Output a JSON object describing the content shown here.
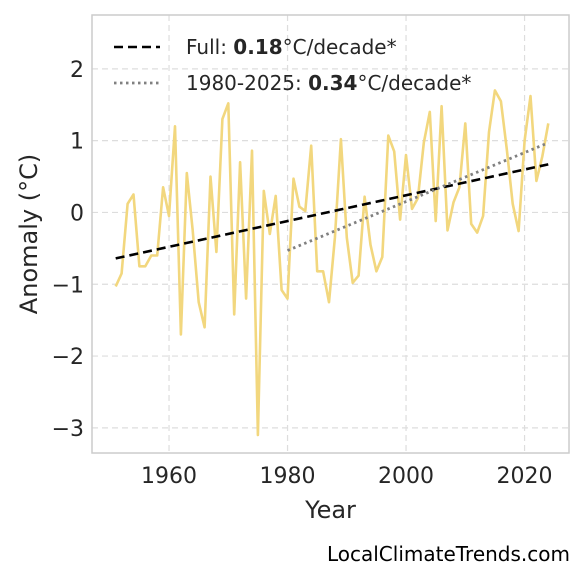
{
  "chart_data": {
    "type": "line",
    "title": "",
    "xlabel": "Year",
    "ylabel": "Anomaly (°C)",
    "xlim": [
      1947,
      2027.5
    ],
    "ylim": [
      -3.35,
      2.75
    ],
    "xticks": [
      1960,
      1980,
      2000,
      2020
    ],
    "yticks": [
      2,
      1,
      0,
      -1,
      -2,
      -3
    ],
    "ytick_labels": [
      "2",
      "1",
      "0",
      "−1",
      "−2",
      "−3"
    ],
    "grid": true,
    "legend_position": "top-left",
    "colors": {
      "series": "#f2d77e",
      "trend_full": "#000000",
      "trend_recent": "#808080",
      "grid": "#dddddd",
      "frame": "#cccccc"
    },
    "series": [
      {
        "name": "",
        "x": [
          1951,
          1952,
          1953,
          1954,
          1955,
          1956,
          1957,
          1958,
          1959,
          1960,
          1961,
          1962,
          1963,
          1964,
          1965,
          1966,
          1967,
          1968,
          1969,
          1970,
          1971,
          1972,
          1973,
          1974,
          1975,
          1976,
          1977,
          1978,
          1979,
          1980,
          1981,
          1982,
          1983,
          1984,
          1985,
          1986,
          1987,
          1988,
          1989,
          1990,
          1991,
          1992,
          1993,
          1994,
          1995,
          1996,
          1997,
          1998,
          1999,
          2000,
          2001,
          2002,
          2003,
          2004,
          2005,
          2006,
          2007,
          2008,
          2009,
          2010,
          2011,
          2012,
          2013,
          2014,
          2015,
          2016,
          2017,
          2018,
          2019,
          2020,
          2021,
          2022,
          2023,
          2024
        ],
        "y": [
          -1.03,
          -0.85,
          0.12,
          0.25,
          -0.75,
          -0.75,
          -0.6,
          -0.6,
          0.35,
          -0.05,
          1.2,
          -1.7,
          0.55,
          -0.25,
          -1.25,
          -1.6,
          0.5,
          -0.55,
          1.3,
          1.52,
          -1.42,
          0.7,
          -1.2,
          0.86,
          -3.1,
          0.3,
          -0.3,
          0.23,
          -1.08,
          -1.2,
          0.47,
          0.08,
          0.02,
          0.93,
          -0.82,
          -0.82,
          -1.25,
          -0.35,
          1.02,
          -0.35,
          -0.98,
          -0.88,
          0.22,
          -0.45,
          -0.82,
          -0.62,
          1.07,
          0.85,
          -0.1,
          0.8,
          0.05,
          0.2,
          0.97,
          1.4,
          -0.12,
          1.48,
          -0.25,
          0.14,
          0.35,
          1.24,
          -0.16,
          -0.28,
          -0.05,
          1.12,
          1.7,
          1.55,
          0.88,
          0.12,
          -0.26,
          1.0,
          1.62,
          0.44,
          0.78,
          1.24
        ]
      }
    ],
    "trend_lines": [
      {
        "label_prefix": "Full: ",
        "label_value": "0.18",
        "label_suffix": "°C/decade*",
        "style": "dashed",
        "x": [
          1951,
          2024
        ],
        "y": [
          -0.64,
          0.67
        ]
      },
      {
        "label_prefix": "1980-2025: ",
        "label_value": "0.34",
        "label_suffix": "°C/decade*",
        "style": "dotted",
        "x": [
          1980,
          2024
        ],
        "y": [
          -0.53,
          0.97
        ]
      }
    ]
  },
  "watermark": "LocalClimateTrends.com"
}
